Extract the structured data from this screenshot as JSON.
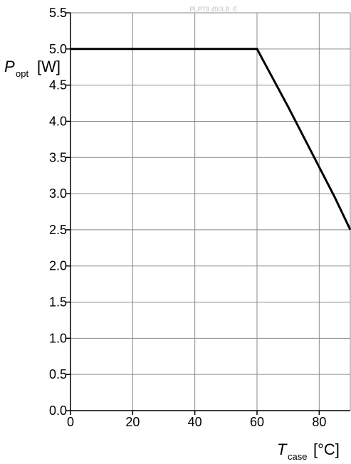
{
  "chart_data": {
    "type": "line",
    "watermark": "PLPT9 450LB_E",
    "ylabel": {
      "symbol": "P",
      "subscript": "opt",
      "unit": "[W]"
    },
    "xlabel": {
      "symbol": "T",
      "subscript": "case",
      "unit": "[°C]"
    },
    "xlim": [
      0,
      90
    ],
    "ylim": [
      0,
      5.5
    ],
    "x_ticks": [
      0,
      20,
      40,
      60,
      80
    ],
    "x_tick_labels": [
      "0",
      "20",
      "40",
      "60",
      "80"
    ],
    "y_ticks": [
      0,
      0.5,
      1.0,
      1.5,
      2.0,
      2.5,
      3.0,
      3.5,
      4.0,
      4.5,
      5.0,
      5.5
    ],
    "y_tick_labels": [
      "0.0",
      "0.5",
      "1.0",
      "1.5",
      "2.0",
      "2.5",
      "3.0",
      "3.5",
      "4.0",
      "4.5",
      "5.0",
      "5.5"
    ],
    "x_grid": [
      0,
      20,
      40,
      60,
      80,
      90
    ],
    "grid": true,
    "series": [
      {
        "x": [
          0,
          60,
          70,
          85,
          90
        ],
        "y": [
          5.0,
          5.0,
          4.2,
          2.95,
          2.5
        ],
        "color": "#000000"
      }
    ]
  }
}
